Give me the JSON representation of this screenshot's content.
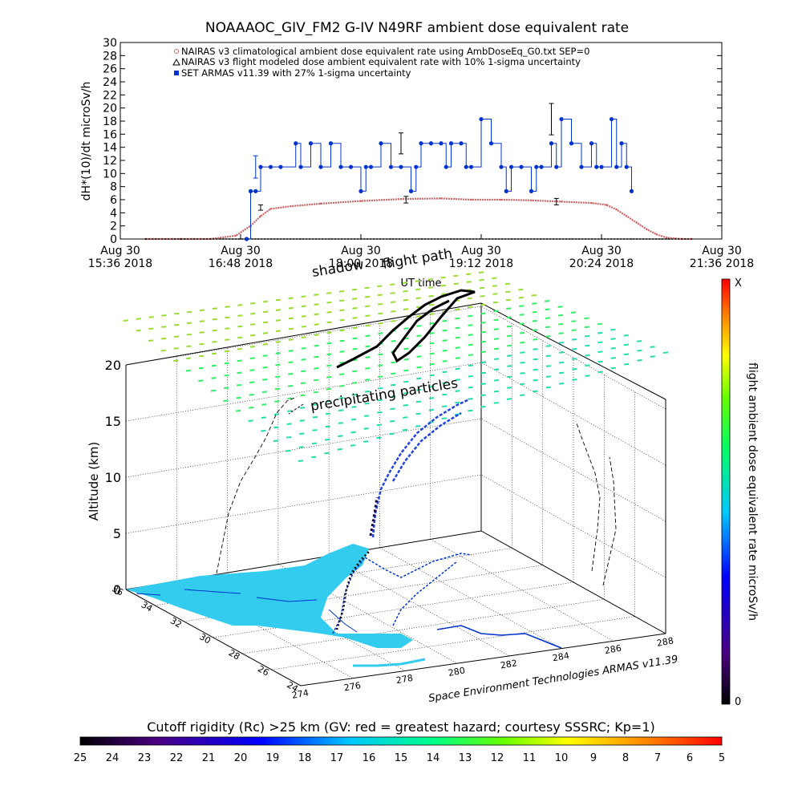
{
  "chart_data": [
    {
      "type": "line",
      "title": "NOAAAOC_GIV_FM2 G-IV    N49RF   ambient dose equivalent rate",
      "ylabel": "dH*(10)/dt microSv/h",
      "xlabel": "UT time",
      "ylim": [
        0,
        30
      ],
      "yticks": [
        "0",
        "2",
        "4",
        "6",
        "8",
        "10",
        "12",
        "14",
        "16",
        "18",
        "20",
        "22",
        "24",
        "26",
        "28",
        "30"
      ],
      "xlim_hours": [
        15.6,
        21.6
      ],
      "xticks": [
        {
          "line1": "Aug 30",
          "line2": "15:36 2018"
        },
        {
          "line1": "Aug 30",
          "line2": "16:48 2018"
        },
        {
          "line1": "Aug 30",
          "line2": "18:00 2018"
        },
        {
          "line1": "Aug 30",
          "line2": "19:12 2018"
        },
        {
          "line1": "Aug 30",
          "line2": "20:24 2018"
        },
        {
          "line1": "Aug 30",
          "line2": "21:36 2018"
        }
      ],
      "legend_position": "top-left",
      "legend": [
        "NAIRAS v3 climatological ambient dose equivalent rate using AmbDoseEq_G0.txt SEP=0",
        "NAIRAS v3 flight modeled dose ambient equivalent rate with 10% 1-sigma uncertainty",
        "SET ARMAS v11.39 with 27% 1-sigma uncertainty"
      ],
      "series": [
        {
          "color": "#cc6666",
          "x": [
            15.85,
            16.2,
            16.5,
            16.75,
            16.9,
            17.0,
            17.1,
            17.3,
            17.6,
            18.0,
            18.4,
            18.8,
            19.1,
            19.4,
            19.7,
            20.0,
            20.3,
            20.45,
            20.55,
            20.65,
            20.75,
            20.85,
            20.95,
            21.05,
            21.2,
            21.3
          ],
          "y": [
            0,
            0,
            0,
            0.5,
            2,
            3.5,
            4.6,
            5.0,
            5.4,
            5.8,
            6.1,
            6.2,
            6.0,
            6.0,
            5.9,
            5.7,
            5.5,
            5.2,
            4.5,
            3.5,
            2.5,
            1.5,
            0.7,
            0.2,
            0,
            0
          ]
        },
        {
          "color": "#000000",
          "x": [
            15.85,
            16.2,
            16.5,
            16.8,
            17.1,
            17.4,
            17.7,
            18.0,
            18.3,
            18.6,
            18.9,
            19.2,
            19.5,
            19.8,
            20.1,
            20.4,
            20.7,
            21.0,
            21.3
          ],
          "y": [
            0,
            0,
            0,
            0,
            0,
            0,
            0,
            0,
            0,
            0,
            0,
            0,
            0,
            0,
            0,
            0,
            0,
            0,
            0
          ]
        },
        {
          "color": "#0033cc",
          "x": [
            16.86,
            16.9,
            16.95,
            17.0,
            17.1,
            17.2,
            17.35,
            17.4,
            17.5,
            17.6,
            17.7,
            17.8,
            17.9,
            18.0,
            18.05,
            18.1,
            18.2,
            18.3,
            18.4,
            18.5,
            18.55,
            18.6,
            18.7,
            18.8,
            18.85,
            18.9,
            19.0,
            19.05,
            19.1,
            19.2,
            19.3,
            19.4,
            19.45,
            19.5,
            19.6,
            19.7,
            19.75,
            19.8,
            19.9,
            19.95,
            20.0,
            20.1,
            20.2,
            20.3,
            20.35,
            20.4,
            20.5,
            20.55,
            20.6,
            20.65,
            20.7
          ],
          "y": [
            0,
            7.3,
            7.3,
            11,
            11,
            11,
            14.6,
            11,
            14.6,
            11,
            14.6,
            11,
            11,
            7.3,
            11,
            11,
            14.6,
            11,
            11,
            7.3,
            11,
            14.6,
            14.6,
            14.6,
            11,
            14.6,
            14.6,
            11,
            11,
            18.3,
            14.6,
            11,
            7.3,
            11,
            11,
            7.3,
            11,
            11,
            14.6,
            11,
            18.3,
            14.6,
            11,
            14.6,
            11,
            11,
            18.3,
            11,
            14.6,
            11,
            7.3
          ]
        }
      ],
      "error_bars": [
        {
          "x": 16.95,
          "y": 11,
          "err": 1.7,
          "color": "#0033cc"
        },
        {
          "x": 18.4,
          "y": 14.6,
          "err": 1.6,
          "color": "#000000"
        },
        {
          "x": 19.9,
          "y": 18.3,
          "err": 2.4,
          "color": "#000000"
        },
        {
          "x": 17.0,
          "y": 4.8,
          "err": 0.4,
          "color": "#000000"
        },
        {
          "x": 18.45,
          "y": 6.0,
          "err": 0.5,
          "color": "#000000"
        },
        {
          "x": 19.95,
          "y": 5.7,
          "err": 0.5,
          "color": "#000000"
        }
      ]
    },
    {
      "type": "scatter",
      "zlabel": "Altitude (km)",
      "zticks": [
        "0",
        "5",
        "10",
        "15",
        "20"
      ],
      "lat_ticks": [
        "36",
        "34",
        "32",
        "30",
        "28",
        "26",
        "24"
      ],
      "lon_ticks": [
        "274",
        "276",
        "278",
        "280",
        "282",
        "284",
        "286",
        "288"
      ],
      "annotations": [
        "flight path",
        "shadow",
        "precipitating particles"
      ],
      "credit": "Space Environment Technologies ARMAS v11.39",
      "land_color": "#33ccee"
    },
    {
      "type": "colorbar",
      "label": "flight ambient dose equivalent rate microSv/h",
      "top_label": "X",
      "bottom_label": "0"
    },
    {
      "type": "colorbar",
      "label": "Cutoff rigidity (Rc) >25 km (GV: red = greatest hazard; courtesy SSSRC; Kp=1)",
      "ticks": [
        "25",
        "24",
        "23",
        "22",
        "21",
        "20",
        "19",
        "18",
        "17",
        "16",
        "15",
        "14",
        "13",
        "12",
        "11",
        "10",
        "9",
        "8",
        "7",
        "6",
        "5"
      ]
    }
  ]
}
